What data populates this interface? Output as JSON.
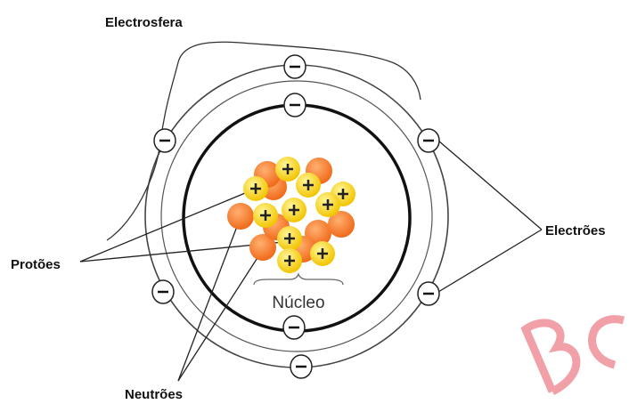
{
  "labels": {
    "electrosphere": "Electrosfera",
    "protons": "Protões",
    "electrons": "Electrões",
    "neutrons": "Neutrões",
    "nucleus": "Núcleo"
  }
}
